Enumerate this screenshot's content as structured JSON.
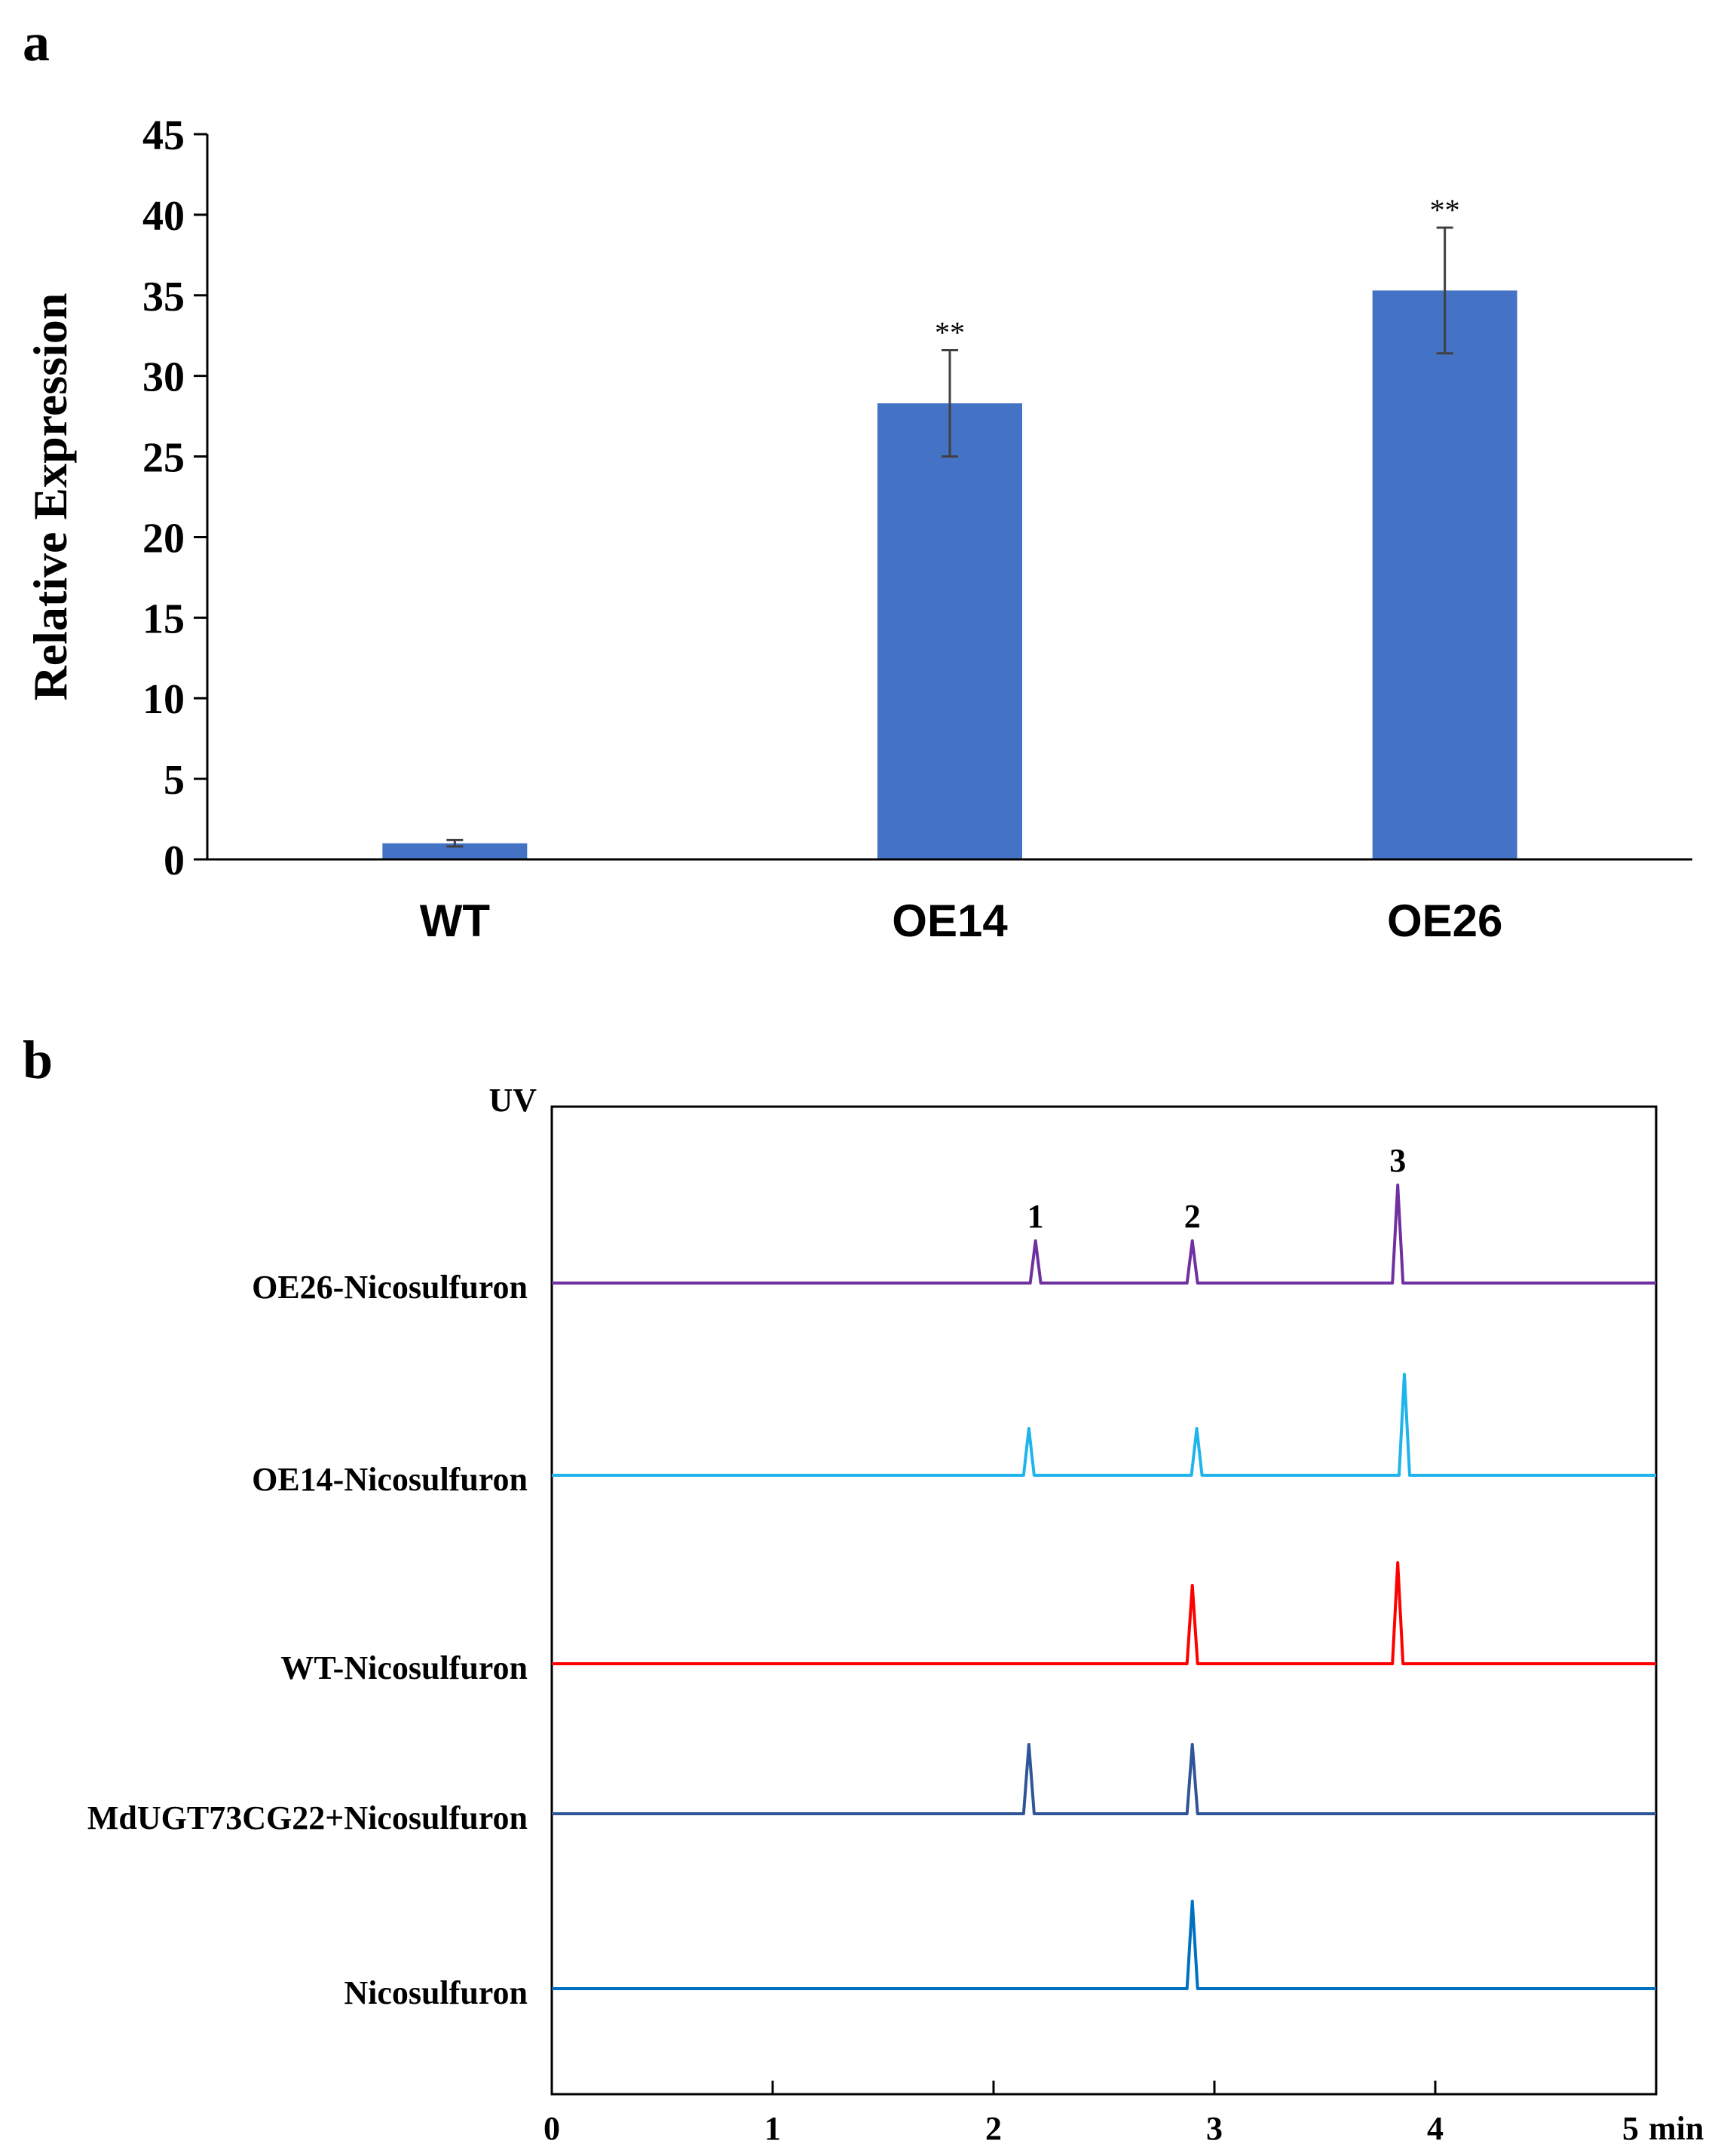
{
  "panels": {
    "a": "a",
    "b": "b"
  },
  "chart_data": [
    {
      "type": "bar",
      "panel": "a",
      "categories": [
        "WT",
        "OE14",
        "OE26"
      ],
      "values": [
        1.0,
        28.3,
        35.3
      ],
      "errors": [
        0.2,
        3.3,
        3.9
      ],
      "significance": [
        "",
        "**",
        "**"
      ],
      "ylabel": "Relative Expression",
      "xlabel": "",
      "ylim": [
        0,
        45
      ],
      "yticks": [
        0,
        5,
        10,
        15,
        20,
        25,
        30,
        35,
        40,
        45
      ],
      "grid": false,
      "bar_color": "#4472c4"
    },
    {
      "type": "line",
      "panel": "b",
      "y_axis_label": "UV",
      "x_unit": "min",
      "xlim": [
        0,
        5
      ],
      "xticks": [
        0,
        1,
        2,
        3,
        4,
        5
      ],
      "grid": false,
      "peak_labels": [
        {
          "text": "1",
          "x": 2.19
        },
        {
          "text": "2",
          "x": 2.9
        },
        {
          "text": "3",
          "x": 3.83
        }
      ],
      "series": [
        {
          "name": "OE26-Nicosulfuron",
          "color": "#7030a0",
          "peaks": [
            {
              "x": 2.19,
              "h": 0.28
            },
            {
              "x": 2.9,
              "h": 0.28
            },
            {
              "x": 3.83,
              "h": 0.65
            }
          ]
        },
        {
          "name": "OE14-Nicosulfuron",
          "color": "#1fb4ec",
          "peaks": [
            {
              "x": 2.16,
              "h": 0.31
            },
            {
              "x": 2.92,
              "h": 0.31
            },
            {
              "x": 3.86,
              "h": 0.67
            }
          ]
        },
        {
          "name": "WT-Nicosulfuron",
          "color": "#ff0000",
          "peaks": [
            {
              "x": 2.9,
              "h": 0.52
            },
            {
              "x": 3.83,
              "h": 0.67
            }
          ]
        },
        {
          "name": "MdUGT73CG22+Nicosulfuron",
          "color": "#2f5597",
          "peaks": [
            {
              "x": 2.16,
              "h": 0.46
            },
            {
              "x": 2.9,
              "h": 0.46
            }
          ]
        },
        {
          "name": "Nicosulfuron",
          "color": "#0070c0",
          "peaks": [
            {
              "x": 2.9,
              "h": 0.58
            }
          ]
        }
      ]
    }
  ]
}
